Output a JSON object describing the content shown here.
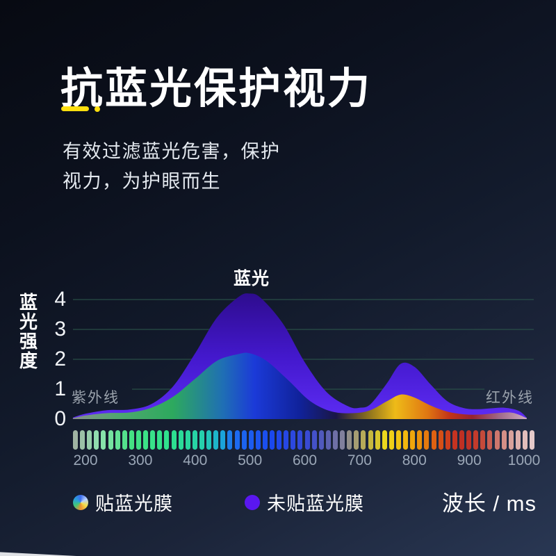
{
  "header": {
    "title": "抗蓝光保护视力",
    "accent_color": "#ffdf0e",
    "subtitle_line1": "有效过滤蓝光危害，保护",
    "subtitle_line2": "视力，为护眼而生"
  },
  "chart_data": {
    "type": "area",
    "title": "",
    "ylabel": "蓝光强度",
    "xlabel": "波长 / ms",
    "y_ticks": [
      4,
      3,
      2,
      1,
      0
    ],
    "x_ticks": [
      200,
      300,
      400,
      500,
      600,
      700,
      800,
      900,
      1000
    ],
    "ylim": [
      0,
      4.5
    ],
    "xlim": [
      177,
      1005
    ],
    "grid": "horizontal",
    "grid_color": "#2c564a",
    "annotations": {
      "peak": "蓝光",
      "left": "紫外线",
      "right": "红外线"
    },
    "legend_position": "bottom",
    "series": [
      {
        "name": "未贴蓝光膜",
        "marker": "dot",
        "marker_color": "#5a17f0",
        "fill_top": "#2e0c8e",
        "fill_mid": "#4318cc",
        "fill_bottom": "#5d2cf4",
        "points": [
          [
            177,
            0.05
          ],
          [
            200,
            0.18
          ],
          [
            240,
            0.3
          ],
          [
            280,
            0.32
          ],
          [
            320,
            0.5
          ],
          [
            360,
            1.1
          ],
          [
            400,
            2.2
          ],
          [
            440,
            3.4
          ],
          [
            480,
            4.1
          ],
          [
            500,
            4.2
          ],
          [
            520,
            4.05
          ],
          [
            560,
            3.2
          ],
          [
            600,
            1.9
          ],
          [
            640,
            0.9
          ],
          [
            680,
            0.42
          ],
          [
            700,
            0.38
          ],
          [
            720,
            0.5
          ],
          [
            750,
            1.2
          ],
          [
            775,
            1.85
          ],
          [
            800,
            1.75
          ],
          [
            830,
            1.15
          ],
          [
            860,
            0.6
          ],
          [
            890,
            0.37
          ],
          [
            915,
            0.33
          ],
          [
            940,
            0.36
          ],
          [
            965,
            0.38
          ],
          [
            990,
            0.28
          ],
          [
            1005,
            0.05
          ]
        ]
      },
      {
        "name": "贴蓝光膜",
        "marker": "color-wheel",
        "gradient": [
          {
            "pos": 0.0,
            "color": "#888d8c"
          },
          {
            "pos": 0.1,
            "color": "#4fa86e"
          },
          {
            "pos": 0.22,
            "color": "#2da95e"
          },
          {
            "pos": 0.33,
            "color": "#1f6fb4"
          },
          {
            "pos": 0.4,
            "color": "#1b3ad8"
          },
          {
            "pos": 0.5,
            "color": "#10229a"
          },
          {
            "pos": 0.58,
            "color": "#1a1646"
          },
          {
            "pos": 0.65,
            "color": "#8a701e"
          },
          {
            "pos": 0.71,
            "color": "#eebb18"
          },
          {
            "pos": 0.78,
            "color": "#e07812"
          },
          {
            "pos": 0.83,
            "color": "#c23418"
          },
          {
            "pos": 0.88,
            "color": "#962430"
          },
          {
            "pos": 0.94,
            "color": "#a06a8a"
          },
          {
            "pos": 1.0,
            "color": "#cfaec0"
          }
        ],
        "points": [
          [
            177,
            0.03
          ],
          [
            200,
            0.12
          ],
          [
            240,
            0.2
          ],
          [
            280,
            0.22
          ],
          [
            320,
            0.38
          ],
          [
            360,
            0.75
          ],
          [
            400,
            1.35
          ],
          [
            440,
            1.95
          ],
          [
            480,
            2.18
          ],
          [
            500,
            2.2
          ],
          [
            530,
            1.95
          ],
          [
            570,
            1.3
          ],
          [
            610,
            0.6
          ],
          [
            650,
            0.25
          ],
          [
            690,
            0.2
          ],
          [
            720,
            0.3
          ],
          [
            750,
            0.6
          ],
          [
            775,
            0.82
          ],
          [
            800,
            0.72
          ],
          [
            830,
            0.45
          ],
          [
            860,
            0.25
          ],
          [
            890,
            0.16
          ],
          [
            920,
            0.15
          ],
          [
            950,
            0.2
          ],
          [
            975,
            0.22
          ],
          [
            990,
            0.15
          ],
          [
            1005,
            0.03
          ]
        ]
      }
    ],
    "spectrum_bar": {
      "count": 66,
      "stops": [
        {
          "pos": 0.0,
          "color": "#9fb3a2"
        },
        {
          "pos": 0.053,
          "color": "#8fe2b0"
        },
        {
          "pos": 0.122,
          "color": "#44e183"
        },
        {
          "pos": 0.206,
          "color": "#2ee18d"
        },
        {
          "pos": 0.282,
          "color": "#25cfae"
        },
        {
          "pos": 0.321,
          "color": "#1ba8d8"
        },
        {
          "pos": 0.344,
          "color": "#1d6ef0"
        },
        {
          "pos": 0.435,
          "color": "#1b46ee"
        },
        {
          "pos": 0.511,
          "color": "#3a4ad2"
        },
        {
          "pos": 0.557,
          "color": "#5f63ae"
        },
        {
          "pos": 0.588,
          "color": "#84849a"
        },
        {
          "pos": 0.618,
          "color": "#a89f6e"
        },
        {
          "pos": 0.649,
          "color": "#c9ba3a"
        },
        {
          "pos": 0.679,
          "color": "#eed91c"
        },
        {
          "pos": 0.725,
          "color": "#f2b70e"
        },
        {
          "pos": 0.756,
          "color": "#ea8f0a"
        },
        {
          "pos": 0.786,
          "color": "#dd5f12"
        },
        {
          "pos": 0.824,
          "color": "#c83420"
        },
        {
          "pos": 0.855,
          "color": "#bc2e24"
        },
        {
          "pos": 0.885,
          "color": "#c4402f"
        },
        {
          "pos": 0.908,
          "color": "#c85e52"
        },
        {
          "pos": 0.936,
          "color": "#d28c84"
        },
        {
          "pos": 0.962,
          "color": "#dcaaa6"
        },
        {
          "pos": 1.0,
          "color": "#e5caca"
        }
      ]
    },
    "legend": [
      {
        "label": "贴蓝光膜",
        "marker": "color-wheel"
      },
      {
        "label": "未贴蓝光膜",
        "marker": "dot",
        "color": "#5a17f0"
      }
    ]
  }
}
